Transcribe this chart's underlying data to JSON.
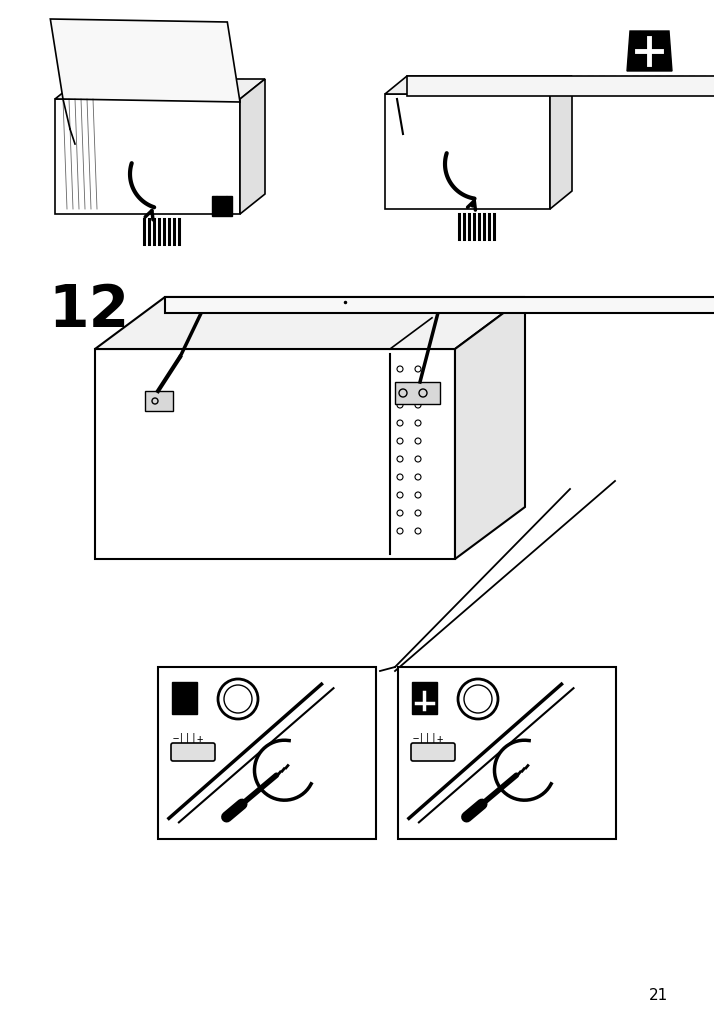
{
  "page_number": "21",
  "step_number": "12",
  "background_color": "#ffffff",
  "line_color": "#000000",
  "fig_width": 7.14,
  "fig_height": 10.12,
  "dpi": 100
}
